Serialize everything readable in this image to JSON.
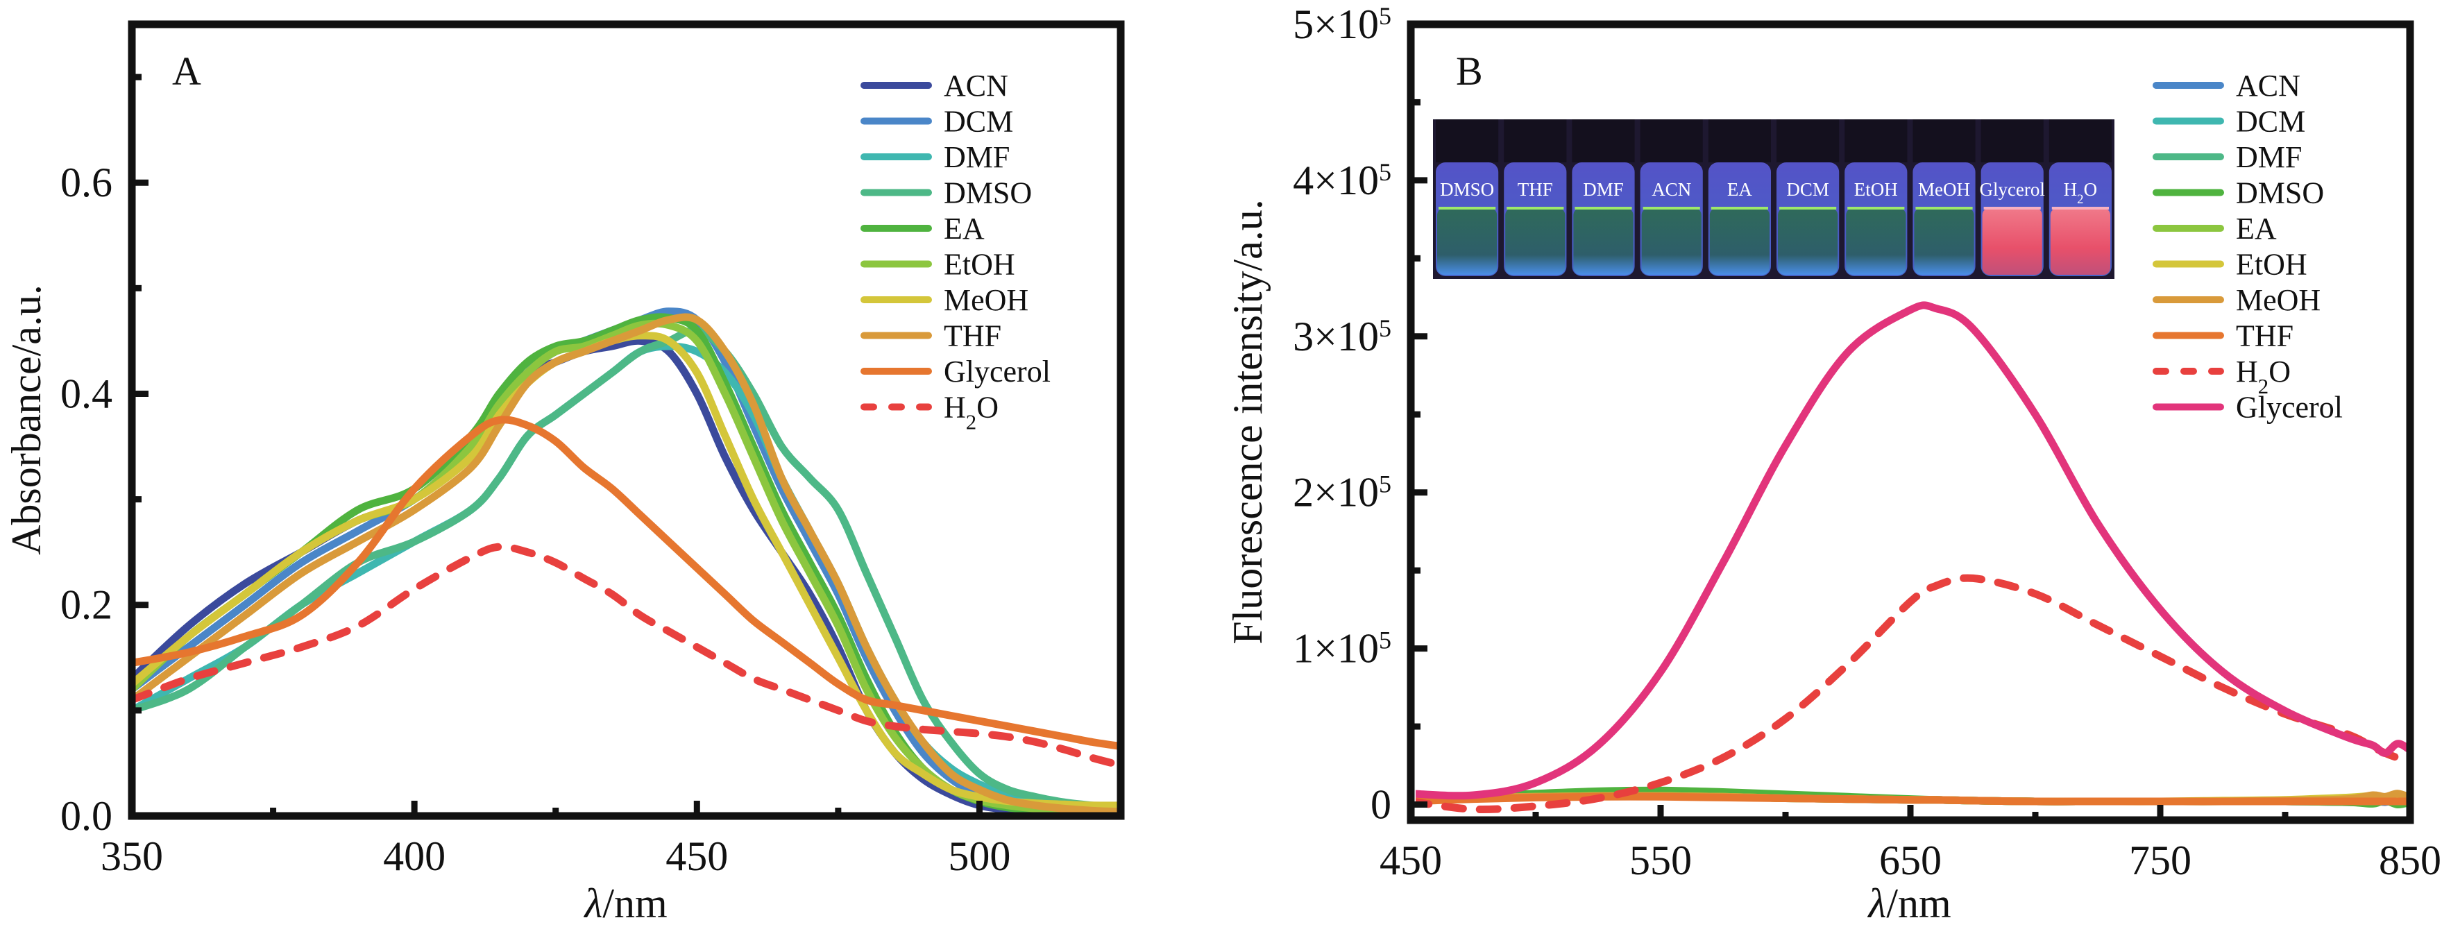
{
  "figure": {
    "panels": [
      "A",
      "B"
    ]
  },
  "chart_data": [
    {
      "id": "A",
      "type": "line",
      "panel_label": "A",
      "title": "",
      "xlabel": "λ/nm",
      "ylabel": "Absorbance/a.u.",
      "xlim": [
        350,
        525
      ],
      "ylim": [
        0,
        0.75
      ],
      "xticks": [
        350,
        400,
        450,
        500
      ],
      "xtick_labels": [
        "350",
        "400",
        "450",
        "500"
      ],
      "xminor": [
        375,
        425,
        475
      ],
      "yticks": [
        0.0,
        0.2,
        0.4,
        0.6
      ],
      "ytick_labels": [
        "0.0",
        "0.2",
        "0.4",
        "0.6"
      ],
      "yminor": [
        0.1,
        0.3,
        0.5,
        0.7
      ],
      "grid": false,
      "legend_position": "top-right",
      "x": [
        350,
        360,
        370,
        380,
        390,
        400,
        410,
        415,
        420,
        425,
        430,
        435,
        440,
        445,
        450,
        455,
        460,
        465,
        470,
        475,
        480,
        485,
        490,
        495,
        500,
        505,
        510,
        515,
        520,
        525
      ],
      "series": [
        {
          "name": "ACN",
          "label_main": "ACN",
          "label_sub": "",
          "color": "#3b4a9c",
          "dash": false,
          "values": [
            0.13,
            0.18,
            0.22,
            0.25,
            0.28,
            0.3,
            0.35,
            0.39,
            0.42,
            0.43,
            0.44,
            0.445,
            0.45,
            0.44,
            0.4,
            0.34,
            0.29,
            0.25,
            0.21,
            0.16,
            0.1,
            0.06,
            0.035,
            0.02,
            0.01,
            0.006,
            0.004,
            0.003,
            0.002,
            0.002
          ]
        },
        {
          "name": "DCM",
          "label_main": "DCM",
          "label_sub": "",
          "color": "#4a86c8",
          "dash": false,
          "values": [
            0.12,
            0.16,
            0.2,
            0.24,
            0.27,
            0.3,
            0.34,
            0.38,
            0.42,
            0.44,
            0.45,
            0.46,
            0.47,
            0.478,
            0.47,
            0.43,
            0.37,
            0.31,
            0.26,
            0.21,
            0.15,
            0.1,
            0.06,
            0.035,
            0.02,
            0.012,
            0.008,
            0.006,
            0.005,
            0.004
          ]
        },
        {
          "name": "DMF",
          "label_main": "DMF",
          "label_sub": "",
          "color": "#3fb7b0",
          "dash": false,
          "values": [
            0.1,
            0.13,
            0.16,
            0.2,
            0.23,
            0.26,
            0.29,
            0.32,
            0.36,
            0.38,
            0.4,
            0.42,
            0.44,
            0.445,
            0.44,
            0.42,
            0.38,
            0.32,
            0.27,
            0.22,
            0.16,
            0.11,
            0.07,
            0.045,
            0.03,
            0.02,
            0.014,
            0.01,
            0.008,
            0.007
          ]
        },
        {
          "name": "DMSO",
          "label_main": "DMSO",
          "label_sub": "",
          "color": "#4db887",
          "dash": false,
          "values": [
            0.1,
            0.12,
            0.16,
            0.2,
            0.24,
            0.26,
            0.29,
            0.32,
            0.36,
            0.38,
            0.4,
            0.42,
            0.44,
            0.45,
            0.46,
            0.44,
            0.4,
            0.35,
            0.32,
            0.29,
            0.23,
            0.17,
            0.11,
            0.07,
            0.04,
            0.025,
            0.018,
            0.013,
            0.01,
            0.008
          ]
        },
        {
          "name": "EA",
          "label_main": "EA",
          "label_sub": "",
          "color": "#4fb33f",
          "dash": false,
          "values": [
            0.12,
            0.17,
            0.21,
            0.25,
            0.29,
            0.31,
            0.36,
            0.4,
            0.43,
            0.445,
            0.45,
            0.46,
            0.47,
            0.472,
            0.46,
            0.41,
            0.35,
            0.29,
            0.24,
            0.19,
            0.13,
            0.08,
            0.045,
            0.025,
            0.014,
            0.008,
            0.006,
            0.004,
            0.003,
            0.003
          ]
        },
        {
          "name": "EtOH",
          "label_main": "EtOH",
          "label_sub": "",
          "color": "#8cc63f",
          "dash": false,
          "values": [
            0.12,
            0.17,
            0.21,
            0.25,
            0.28,
            0.3,
            0.35,
            0.39,
            0.42,
            0.44,
            0.445,
            0.455,
            0.465,
            0.465,
            0.45,
            0.4,
            0.34,
            0.28,
            0.23,
            0.18,
            0.12,
            0.075,
            0.045,
            0.025,
            0.015,
            0.01,
            0.007,
            0.005,
            0.004,
            0.004
          ]
        },
        {
          "name": "MeOH",
          "label_main": "MeOH",
          "label_sub": "",
          "color": "#d4c63a",
          "dash": false,
          "values": [
            0.125,
            0.17,
            0.21,
            0.25,
            0.28,
            0.3,
            0.34,
            0.38,
            0.41,
            0.43,
            0.44,
            0.45,
            0.455,
            0.45,
            0.42,
            0.36,
            0.3,
            0.25,
            0.2,
            0.15,
            0.1,
            0.06,
            0.04,
            0.025,
            0.018,
            0.014,
            0.012,
            0.011,
            0.01,
            0.01
          ]
        },
        {
          "name": "THF",
          "label_main": "THF",
          "label_sub": "",
          "color": "#d99a3a",
          "dash": false,
          "values": [
            0.11,
            0.15,
            0.19,
            0.23,
            0.26,
            0.29,
            0.33,
            0.37,
            0.41,
            0.43,
            0.44,
            0.45,
            0.46,
            0.47,
            0.47,
            0.44,
            0.39,
            0.32,
            0.27,
            0.22,
            0.16,
            0.11,
            0.07,
            0.04,
            0.025,
            0.015,
            0.01,
            0.007,
            0.005,
            0.004
          ]
        },
        {
          "name": "Glycerol",
          "label_main": "Glycerol",
          "label_sub": "",
          "color": "#e6762f",
          "dash": false,
          "values": [
            0.145,
            0.155,
            0.17,
            0.19,
            0.24,
            0.31,
            0.36,
            0.375,
            0.37,
            0.355,
            0.33,
            0.31,
            0.285,
            0.26,
            0.235,
            0.21,
            0.185,
            0.165,
            0.145,
            0.125,
            0.11,
            0.105,
            0.1,
            0.095,
            0.09,
            0.085,
            0.08,
            0.075,
            0.07,
            0.066
          ]
        },
        {
          "name": "H2O",
          "label_main": "H",
          "label_sub": "2",
          "label_tail": "O",
          "color": "#e8403e",
          "dash": true,
          "values": [
            0.11,
            0.13,
            0.145,
            0.16,
            0.18,
            0.215,
            0.245,
            0.255,
            0.25,
            0.24,
            0.225,
            0.21,
            0.19,
            0.175,
            0.16,
            0.145,
            0.13,
            0.12,
            0.11,
            0.1,
            0.09,
            0.085,
            0.082,
            0.08,
            0.078,
            0.075,
            0.07,
            0.063,
            0.055,
            0.048
          ]
        }
      ]
    },
    {
      "id": "B",
      "type": "line",
      "panel_label": "B",
      "title": "",
      "xlabel": "λ/nm",
      "ylabel": "Fluorescence intensity/a.u.",
      "xlim": [
        450,
        850
      ],
      "ylim": [
        -10000,
        500000
      ],
      "xticks": [
        450,
        550,
        650,
        750,
        850
      ],
      "xtick_labels": [
        "450",
        "550",
        "650",
        "750",
        "850"
      ],
      "xminor": [
        500,
        600,
        700,
        800
      ],
      "yticks": [
        0,
        100000,
        200000,
        300000,
        400000,
        500000
      ],
      "ytick_labels": [
        {
          "main": "0",
          "exp": ""
        },
        {
          "main": "1×10",
          "exp": "5"
        },
        {
          "main": "2×10",
          "exp": "5"
        },
        {
          "main": "3×10",
          "exp": "5"
        },
        {
          "main": "4×10",
          "exp": "5"
        },
        {
          "main": "5×10",
          "exp": "5"
        }
      ],
      "yminor": [
        50000,
        150000,
        250000,
        350000,
        450000
      ],
      "grid": false,
      "legend_position": "top-right",
      "x": [
        450,
        475,
        500,
        525,
        550,
        575,
        600,
        625,
        650,
        660,
        675,
        700,
        725,
        750,
        775,
        800,
        825,
        835,
        840,
        845,
        850
      ],
      "series": [
        {
          "name": "ACN",
          "label_main": "ACN",
          "label_sub": "",
          "color": "#4a86c8",
          "dash": false,
          "values": [
            2000,
            4000,
            5000,
            5500,
            5500,
            5000,
            4000,
            3500,
            3000,
            3000,
            2500,
            2000,
            2000,
            2000,
            2000,
            2000,
            2000,
            2500,
            1500,
            3000,
            2000
          ]
        },
        {
          "name": "DCM",
          "label_main": "DCM",
          "label_sub": "",
          "color": "#3fb7b0",
          "dash": false,
          "values": [
            2000,
            4000,
            5500,
            6000,
            6000,
            5500,
            4500,
            3500,
            3000,
            3000,
            2500,
            2000,
            2000,
            2000,
            2000,
            2000,
            1500,
            1000,
            2500,
            1000,
            1500
          ]
        },
        {
          "name": "DMF",
          "label_main": "DMF",
          "label_sub": "",
          "color": "#4db887",
          "dash": false,
          "values": [
            2000,
            4500,
            6000,
            7000,
            7000,
            6000,
            5000,
            4000,
            3000,
            3000,
            2500,
            2000,
            2000,
            2000,
            2000,
            2000,
            1500,
            1000,
            2500,
            500,
            1000
          ]
        },
        {
          "name": "DMSO",
          "label_main": "DMSO",
          "label_sub": "",
          "color": "#4fb33f",
          "dash": false,
          "values": [
            2000,
            5000,
            7000,
            8500,
            9000,
            8000,
            6500,
            5000,
            3500,
            3000,
            2500,
            2000,
            2000,
            2000,
            2000,
            2000,
            1500,
            500,
            2500,
            0,
            1500
          ]
        },
        {
          "name": "EA",
          "label_main": "EA",
          "label_sub": "",
          "color": "#8cc63f",
          "dash": false,
          "values": [
            2000,
            4000,
            5000,
            5500,
            5500,
            5000,
            4000,
            3500,
            3000,
            3000,
            2500,
            2000,
            2000,
            2000,
            2000,
            2500,
            3500,
            4000,
            2500,
            4500,
            3000
          ]
        },
        {
          "name": "EtOH",
          "label_main": "EtOH",
          "label_sub": "",
          "color": "#d4c63a",
          "dash": false,
          "values": [
            2000,
            4000,
            5000,
            5500,
            5500,
            5000,
            4000,
            3500,
            3000,
            3000,
            2500,
            2000,
            2000,
            2000,
            2500,
            3000,
            4500,
            5500,
            4000,
            6000,
            4000
          ]
        },
        {
          "name": "MeOH",
          "label_main": "MeOH",
          "label_sub": "",
          "color": "#d99a3a",
          "dash": false,
          "values": [
            2000,
            4000,
            5000,
            5500,
            5500,
            5000,
            4000,
            3500,
            3000,
            3000,
            2500,
            2000,
            2000,
            2000,
            2000,
            2500,
            3500,
            6000,
            5000,
            7000,
            4500
          ]
        },
        {
          "name": "THF",
          "label_main": "THF",
          "label_sub": "",
          "color": "#e6762f",
          "dash": false,
          "values": [
            2000,
            3500,
            4500,
            5000,
            5000,
            4500,
            4000,
            3500,
            3000,
            3000,
            2500,
            2000,
            2000,
            2000,
            2000,
            2000,
            2000,
            2000,
            2000,
            2000,
            2000
          ]
        },
        {
          "name": "H2O",
          "label_main": "H",
          "label_sub": "2",
          "label_tail": "O",
          "color": "#e8403e",
          "dash": true,
          "values": [
            2000,
            -3000,
            -1000,
            4000,
            14000,
            30000,
            55000,
            90000,
            130000,
            140000,
            145000,
            135000,
            115000,
            95000,
            75000,
            58000,
            45000,
            37000,
            33000,
            30000,
            28000
          ]
        },
        {
          "name": "Glycerol",
          "label_main": "Glycerol",
          "label_sub": "",
          "color": "#e2347b",
          "dash": false,
          "values": [
            7000,
            6000,
            14000,
            38000,
            85000,
            155000,
            230000,
            290000,
            317000,
            318000,
            305000,
            250000,
            180000,
            125000,
            85000,
            60000,
            43000,
            38000,
            33000,
            39000,
            35000
          ]
        }
      ],
      "inset": {
        "vials": [
          {
            "label_main": "DMSO",
            "label_sub": "",
            "glow": "green"
          },
          {
            "label_main": "THF",
            "label_sub": "",
            "glow": "green"
          },
          {
            "label_main": "DMF",
            "label_sub": "",
            "glow": "green"
          },
          {
            "label_main": "ACN",
            "label_sub": "",
            "glow": "green"
          },
          {
            "label_main": "EA",
            "label_sub": "",
            "glow": "green"
          },
          {
            "label_main": "DCM",
            "label_sub": "",
            "glow": "green"
          },
          {
            "label_main": "EtOH",
            "label_sub": "",
            "glow": "green"
          },
          {
            "label_main": "MeOH",
            "label_sub": "",
            "glow": "green"
          },
          {
            "label_main": "Glycerol",
            "label_sub": "",
            "glow": "red"
          },
          {
            "label_main": "H",
            "label_sub": "2",
            "label_tail": "O",
            "glow": "red"
          }
        ]
      }
    }
  ]
}
